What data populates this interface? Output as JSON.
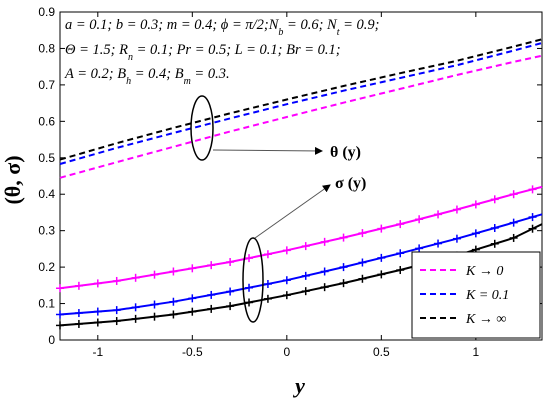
{
  "chart_data": {
    "type": "line",
    "xlabel": "y",
    "ylabel": "(θ, σ)",
    "xlim": [
      -1.2,
      1.35
    ],
    "ylim": [
      0,
      0.9
    ],
    "xticks": [
      -1,
      -0.5,
      0,
      0.5,
      1
    ],
    "xtick_labels": [
      "-1",
      "-0.5",
      "0",
      "0.5",
      "1"
    ],
    "yticks": [
      0,
      0.1,
      0.2,
      0.3,
      0.4,
      0.5,
      0.6,
      0.7,
      0.8,
      0.9
    ],
    "ytick_labels": [
      "0",
      "0.1",
      "0.2",
      "0.3",
      "0.4",
      "0.5",
      "0.6",
      "0.7",
      "0.8",
      "0.9"
    ],
    "grid": false,
    "legend_position": "bottom-right",
    "parameters": [
      "a = 0.1; b = 0.3; m = 0.4; ϕ = π/2;N",
      "b",
      " = 0.6; N",
      "t",
      " = 0.9;",
      "Θ = 1.5; R",
      "n",
      " = 0.1; Pr = 0.5; L = 0.1; Br = 0.1;",
      "A = 0.2; B",
      "h",
      " = 0.4; B",
      "m",
      " = 0.3."
    ],
    "annotations": [
      "θ (y)",
      "σ (y)"
    ],
    "x": [
      -1.2,
      -0.9,
      -0.6,
      -0.3,
      0.0,
      0.3,
      0.6,
      0.9,
      1.2,
      1.35
    ],
    "series": [
      {
        "name": "K → 0",
        "variable": "θ",
        "color": "#ff00ff",
        "dash": true,
        "markers": false,
        "values": [
          0.445,
          0.488,
          0.53,
          0.572,
          0.612,
          0.651,
          0.689,
          0.727,
          0.763,
          0.78
        ]
      },
      {
        "name": "K = 0.1",
        "variable": "θ",
        "color": "#0000ff",
        "dash": true,
        "markers": false,
        "values": [
          0.483,
          0.527,
          0.568,
          0.608,
          0.647,
          0.684,
          0.719,
          0.754,
          0.794,
          0.815
        ]
      },
      {
        "name": "K → ∞",
        "variable": "θ",
        "color": "#000000",
        "dash": true,
        "markers": false,
        "values": [
          0.495,
          0.54,
          0.582,
          0.622,
          0.66,
          0.697,
          0.732,
          0.766,
          0.805,
          0.825
        ]
      },
      {
        "name": "K → 0",
        "variable": "σ",
        "color": "#ff00ff",
        "dash": false,
        "markers": true,
        "values": [
          0.142,
          0.162,
          0.188,
          0.214,
          0.246,
          0.281,
          0.318,
          0.358,
          0.4,
          0.42
        ]
      },
      {
        "name": "K = 0.1",
        "variable": "σ",
        "color": "#0000ff",
        "dash": false,
        "markers": true,
        "values": [
          0.07,
          0.082,
          0.105,
          0.133,
          0.164,
          0.2,
          0.238,
          0.278,
          0.322,
          0.345
        ]
      },
      {
        "name": "K → ∞",
        "variable": "σ",
        "color": "#000000",
        "dash": false,
        "markers": true,
        "values": [
          0.04,
          0.052,
          0.07,
          0.093,
          0.123,
          0.156,
          0.192,
          0.232,
          0.28,
          0.318
        ]
      }
    ],
    "legend": [
      {
        "label": "K → 0",
        "color": "#ff00ff"
      },
      {
        "label": "K = 0.1",
        "color": "#0000ff"
      },
      {
        "label": "K → ∞",
        "color": "#000000"
      }
    ]
  }
}
